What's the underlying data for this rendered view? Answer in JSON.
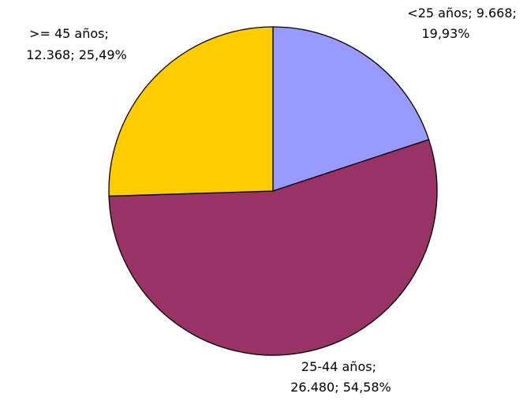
{
  "chart_data": {
    "type": "pie",
    "categories": [
      "<25 años",
      "25-44 años",
      ">= 45 años"
    ],
    "values": [
      9668,
      26480,
      12368
    ],
    "value_labels": [
      "9.668",
      "26.480",
      "12.368"
    ],
    "percentages": [
      19.93,
      54.58,
      25.49
    ],
    "percentage_labels": [
      "19,93%",
      "54,58%",
      "25,49%"
    ],
    "label_separator": "; ",
    "colors": [
      "#9999ff",
      "#993366",
      "#ffcc00"
    ]
  }
}
